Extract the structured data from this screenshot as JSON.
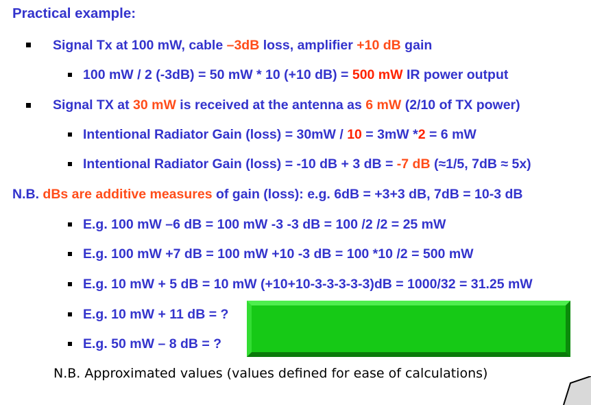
{
  "title": "Practical example:",
  "b1": {
    "t1": "Signal Tx at 100 mW, cable ",
    "t2": "–3dB",
    "t3": " loss, amplifier ",
    "t4": "+10 dB",
    "t5": " gain"
  },
  "b1s": {
    "t1": "100 mW / 2 (-3dB) = 50 mW * 10 (+10 dB) = ",
    "t2": "500 mW",
    "t3": " IR power output"
  },
  "b2": {
    "t1": "Signal TX at ",
    "t2": "30 mW",
    "t3": " is received at the antenna as ",
    "t4": "6 mW",
    "t5": " (2/10 of TX power)"
  },
  "b2s1": {
    "t1": "Intentional Radiator Gain (loss) = 30mW / ",
    "t2": "10",
    "t3": " = 3mW *",
    "t4": "2",
    "t5": " = 6 mW"
  },
  "b2s2": {
    "t1": "Intentional Radiator Gain (loss) = -10 dB + 3 dB = ",
    "t2": "-7 dB",
    "t3": " (≈1/5, 7dB ≈ 5x)"
  },
  "nb1": {
    "t1": "N.B. ",
    "t2": "dBs are additive measures",
    "t3": " of gain (loss): e.g. 6dB = +3+3 dB, 7dB = 10-3 dB"
  },
  "examples": [
    "E.g. 100 mW –6 dB = 100 mW -3 -3 dB = 100 /2 /2 = 25 mW",
    "E.g. 100 mW +7 dB = 100 mW +10 -3 dB = 100 *10 /2 = 500 mW",
    "E.g. 10 mW + 5 dB = 10 mW (+10+10-3-3-3-3-3)dB = 1000/32 = 31.25 mW",
    "E.g. 10 mW + 11 dB = ?",
    "E.g. 50 mW – 8 dB = ?"
  ],
  "nb2": "N.B. Approximated values (values defined for ease of calculations)",
  "colors": {
    "text_blue": "#3333cc",
    "red": "#ff2200",
    "orange": "#ff4d1a",
    "answer_box_green": "#16c916"
  }
}
